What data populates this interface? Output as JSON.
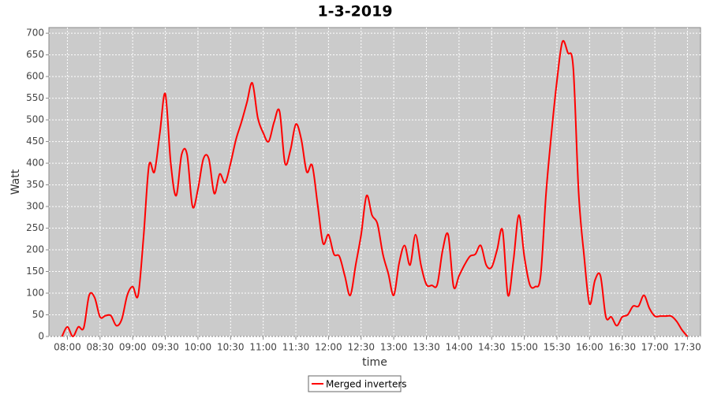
{
  "chart_data": {
    "type": "line",
    "title": "1-3-2019",
    "x_label": "time",
    "y_label": "Watt",
    "x": [
      "07:55",
      "08:00",
      "08:05",
      "08:10",
      "08:15",
      "08:20",
      "08:25",
      "08:30",
      "08:35",
      "08:40",
      "08:45",
      "08:50",
      "08:55",
      "09:00",
      "09:05",
      "09:10",
      "09:15",
      "09:20",
      "09:25",
      "09:30",
      "09:35",
      "09:40",
      "09:45",
      "09:50",
      "09:55",
      "10:00",
      "10:05",
      "10:10",
      "10:15",
      "10:20",
      "10:25",
      "10:30",
      "10:35",
      "10:40",
      "10:45",
      "10:50",
      "10:55",
      "11:00",
      "11:05",
      "11:10",
      "11:15",
      "11:20",
      "11:25",
      "11:30",
      "11:35",
      "11:40",
      "11:45",
      "11:50",
      "11:55",
      "12:00",
      "12:05",
      "12:10",
      "12:15",
      "12:20",
      "12:25",
      "12:30",
      "12:35",
      "12:40",
      "12:45",
      "12:50",
      "12:55",
      "13:00",
      "13:05",
      "13:10",
      "13:15",
      "13:20",
      "13:25",
      "13:30",
      "13:35",
      "13:40",
      "13:45",
      "13:50",
      "13:55",
      "14:00",
      "14:05",
      "14:10",
      "14:15",
      "14:20",
      "14:25",
      "14:30",
      "14:35",
      "14:40",
      "14:45",
      "14:50",
      "14:55",
      "15:00",
      "15:05",
      "15:10",
      "15:15",
      "15:20",
      "15:25",
      "15:30",
      "15:35",
      "15:40",
      "15:45",
      "15:50",
      "15:55",
      "16:00",
      "16:05",
      "16:10",
      "16:15",
      "16:20",
      "16:25",
      "16:30",
      "16:35",
      "16:40",
      "16:45",
      "16:50",
      "16:55",
      "17:00",
      "17:05",
      "17:10",
      "17:15",
      "17:20",
      "17:25",
      "17:30"
    ],
    "series": [
      {
        "name": "Merged inverters",
        "color": "#ff0000",
        "values": [
          0,
          22,
          0,
          22,
          20,
          95,
          90,
          45,
          48,
          48,
          25,
          40,
          95,
          115,
          95,
          230,
          395,
          380,
          470,
          560,
          400,
          325,
          420,
          420,
          300,
          340,
          410,
          410,
          330,
          375,
          355,
          400,
          455,
          495,
          540,
          585,
          505,
          470,
          450,
          495,
          520,
          400,
          430,
          490,
          455,
          380,
          395,
          305,
          215,
          235,
          190,
          185,
          140,
          95,
          165,
          235,
          325,
          280,
          260,
          190,
          145,
          95,
          170,
          210,
          165,
          235,
          165,
          120,
          118,
          120,
          200,
          235,
          115,
          140,
          165,
          185,
          190,
          210,
          165,
          160,
          200,
          245,
          95,
          175,
          280,
          185,
          120,
          115,
          140,
          330,
          470,
          590,
          680,
          655,
          620,
          330,
          185,
          75,
          130,
          140,
          45,
          45,
          25,
          45,
          50,
          70,
          70,
          95,
          65,
          47,
          47,
          47,
          47,
          35,
          15,
          0
        ]
      }
    ],
    "xlim": [
      "07:43",
      "17:42"
    ],
    "xticks": [
      "08:00",
      "08:30",
      "09:00",
      "09:30",
      "10:00",
      "10:30",
      "11:00",
      "11:30",
      "12:00",
      "12:30",
      "13:00",
      "13:30",
      "14:00",
      "14:30",
      "15:00",
      "15:30",
      "16:00",
      "16:30",
      "17:00",
      "17:30"
    ],
    "ylim": [
      0,
      713
    ],
    "yticks": [
      0,
      50,
      100,
      150,
      200,
      250,
      300,
      350,
      400,
      450,
      500,
      550,
      600,
      650,
      700
    ],
    "grid": true,
    "legend": "bottom"
  }
}
